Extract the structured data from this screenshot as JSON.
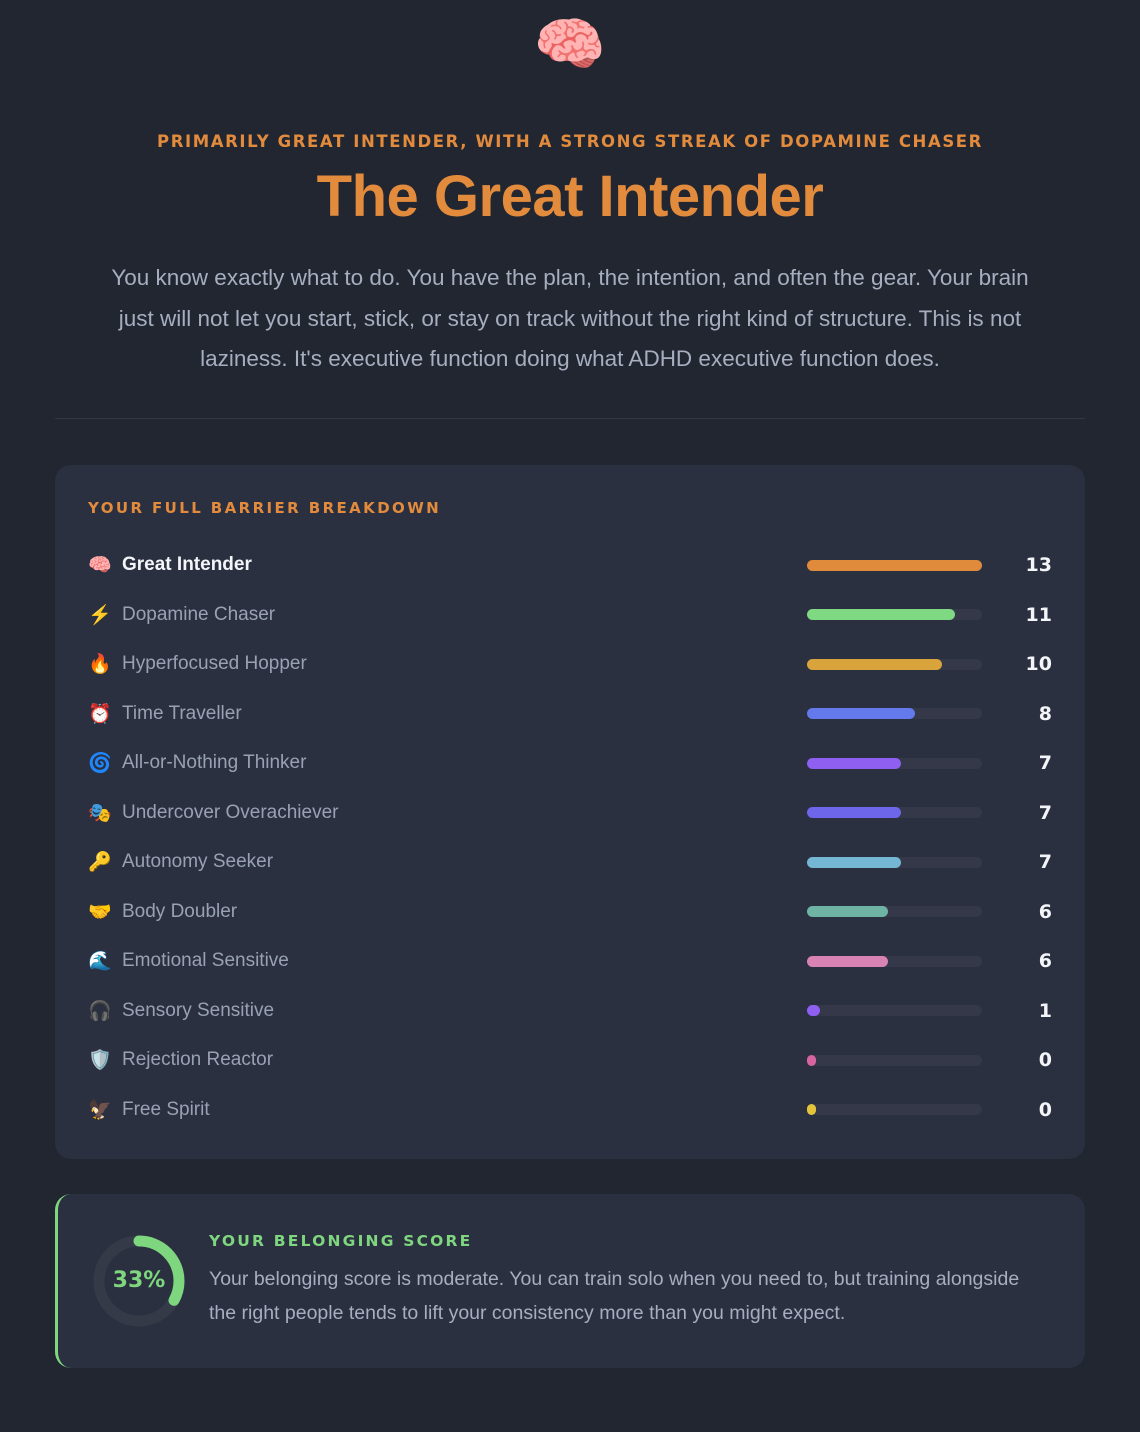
{
  "colors": {
    "accent_orange": "#E28B3D",
    "accent_green": "#7ED67F",
    "page_background": "#212631",
    "card_background": "#2B3040"
  },
  "hero": {
    "emoji": "🧠",
    "kicker": "PRIMARILY GREAT INTENDER, WITH A STRONG STREAK OF DOPAMINE CHASER",
    "title": "The Great Intender",
    "description": "You know exactly what to do. You have the plan, the intention, and often the gear. Your brain just will not let you start, stick, or stay on track without the right kind of structure. This is not laziness. It's executive function doing what ADHD executive function does."
  },
  "breakdown": {
    "heading": "YOUR FULL BARRIER BREAKDOWN",
    "max_score": 13,
    "rows": [
      {
        "emoji": "🧠",
        "label": "Great Intender",
        "score": 13,
        "color": "#E08A3C",
        "primary": true
      },
      {
        "emoji": "⚡",
        "label": "Dopamine Chaser",
        "score": 11,
        "color": "#7FD882",
        "primary": false
      },
      {
        "emoji": "🔥",
        "label": "Hyperfocused Hopper",
        "score": 10,
        "color": "#D9A43B",
        "primary": false
      },
      {
        "emoji": "⏰",
        "label": "Time Traveller",
        "score": 8,
        "color": "#6379EC",
        "primary": false
      },
      {
        "emoji": "🌀",
        "label": "All-or-Nothing Thinker",
        "score": 7,
        "color": "#8E5FF0",
        "primary": false
      },
      {
        "emoji": "🎭",
        "label": "Undercover Overachiever",
        "score": 7,
        "color": "#6E66EA",
        "primary": false
      },
      {
        "emoji": "🔑",
        "label": "Autonomy Seeker",
        "score": 7,
        "color": "#74B6D4",
        "primary": false
      },
      {
        "emoji": "🤝",
        "label": "Body Doubler",
        "score": 6,
        "color": "#6FB3A4",
        "primary": false
      },
      {
        "emoji": "🌊",
        "label": "Emotional Sensitive",
        "score": 6,
        "color": "#D983B4",
        "primary": false
      },
      {
        "emoji": "🎧",
        "label": "Sensory Sensitive",
        "score": 1,
        "color": "#8E5FF0",
        "primary": false
      },
      {
        "emoji": "🛡️",
        "label": "Rejection Reactor",
        "score": 0,
        "color": "#D7639F",
        "primary": false
      },
      {
        "emoji": "🦅",
        "label": "Free Spirit",
        "score": 0,
        "color": "#E3C43B",
        "primary": false
      }
    ]
  },
  "belonging": {
    "heading": "YOUR BELONGING SCORE",
    "percent": 33,
    "percent_label": "33%",
    "description": "Your belonging score is moderate. You can train solo when you need to, but training alongside the right people tends to lift your consistency more than you might expect."
  },
  "chart_data": {
    "type": "bar",
    "orientation": "horizontal",
    "title": "YOUR FULL BARRIER BREAKDOWN",
    "categories": [
      "Great Intender",
      "Dopamine Chaser",
      "Hyperfocused Hopper",
      "Time Traveller",
      "All-or-Nothing Thinker",
      "Undercover Overachiever",
      "Autonomy Seeker",
      "Body Doubler",
      "Emotional Sensitive",
      "Sensory Sensitive",
      "Rejection Reactor",
      "Free Spirit"
    ],
    "values": [
      13,
      11,
      10,
      8,
      7,
      7,
      7,
      6,
      6,
      1,
      0,
      0
    ],
    "xlim": [
      0,
      13
    ],
    "data_labels": true,
    "grid": false,
    "legend": false
  }
}
